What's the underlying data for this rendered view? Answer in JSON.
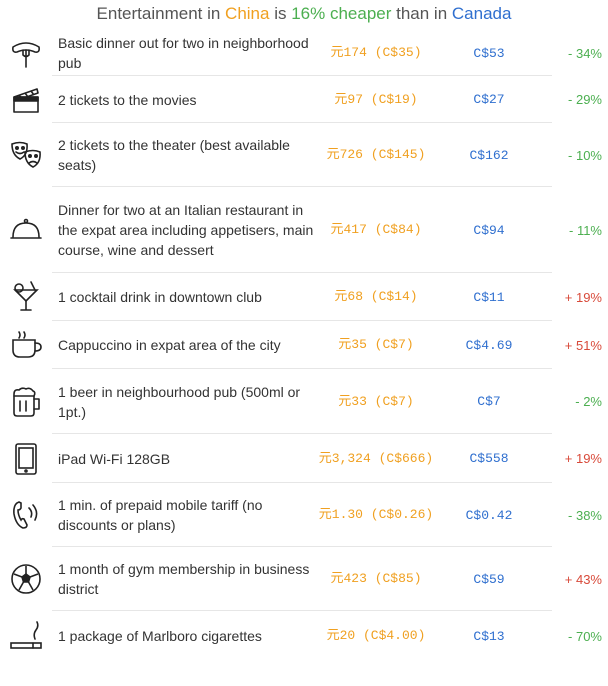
{
  "header": {
    "prefix": "Entertainment in ",
    "country1": "China",
    "mid1": " is ",
    "percent": "16% cheaper",
    "mid2": " than in ",
    "country2": "Canada"
  },
  "colors": {
    "china": "#f0a020",
    "canada": "#2f6fcf",
    "cheaper": "#4caf50",
    "pricier": "#d84a3a"
  },
  "rows": [
    {
      "icon": "sausage-fork-icon",
      "label": "Basic dinner out for two in neighborhood pub",
      "cn": "元174 (C$35)",
      "ca": "C$53",
      "diff": "- 34%",
      "dir": "neg"
    },
    {
      "icon": "clapperboard-icon",
      "label": "2 tickets to the movies",
      "cn": "元97 (C$19)",
      "ca": "C$27",
      "diff": "- 29%",
      "dir": "neg"
    },
    {
      "icon": "theater-masks-icon",
      "label": "2 tickets to the theater (best available seats)",
      "cn": "元726 (C$145)",
      "ca": "C$162",
      "diff": "- 10%",
      "dir": "neg"
    },
    {
      "icon": "cloche-icon",
      "label": "Dinner for two at an Italian restaurant in the expat area including appetisers, main course, wine and dessert",
      "cn": "元417 (C$84)",
      "ca": "C$94",
      "diff": "- 11%",
      "dir": "neg"
    },
    {
      "icon": "cocktail-icon",
      "label": "1 cocktail drink in downtown club",
      "cn": "元68 (C$14)",
      "ca": "C$11",
      "diff": "+ 19%",
      "dir": "pos"
    },
    {
      "icon": "coffee-cup-icon",
      "label": "Cappuccino in expat area of the city",
      "cn": "元35 (C$7)",
      "ca": "C$4.69",
      "diff": "+ 51%",
      "dir": "pos"
    },
    {
      "icon": "beer-mug-icon",
      "label": "1 beer in neighbourhood pub (500ml or 1pt.)",
      "cn": "元33 (C$7)",
      "ca": "C$7",
      "diff": "- 2%",
      "dir": "neg"
    },
    {
      "icon": "tablet-icon",
      "label": "iPad Wi-Fi 128GB",
      "cn": "元3,324 (C$666)",
      "ca": "C$558",
      "diff": "+ 19%",
      "dir": "pos"
    },
    {
      "icon": "phone-handset-icon",
      "label": "1 min. of prepaid mobile tariff (no discounts or plans)",
      "cn": "元1.30 (C$0.26)",
      "ca": "C$0.42",
      "diff": "- 38%",
      "dir": "neg"
    },
    {
      "icon": "soccer-ball-icon",
      "label": "1 month of gym membership in business district",
      "cn": "元423 (C$85)",
      "ca": "C$59",
      "diff": "+ 43%",
      "dir": "pos"
    },
    {
      "icon": "cigarette-icon",
      "label": "1 package of Marlboro cigarettes",
      "cn": "元20 (C$4.00)",
      "ca": "C$13",
      "diff": "- 70%",
      "dir": "neg"
    }
  ]
}
